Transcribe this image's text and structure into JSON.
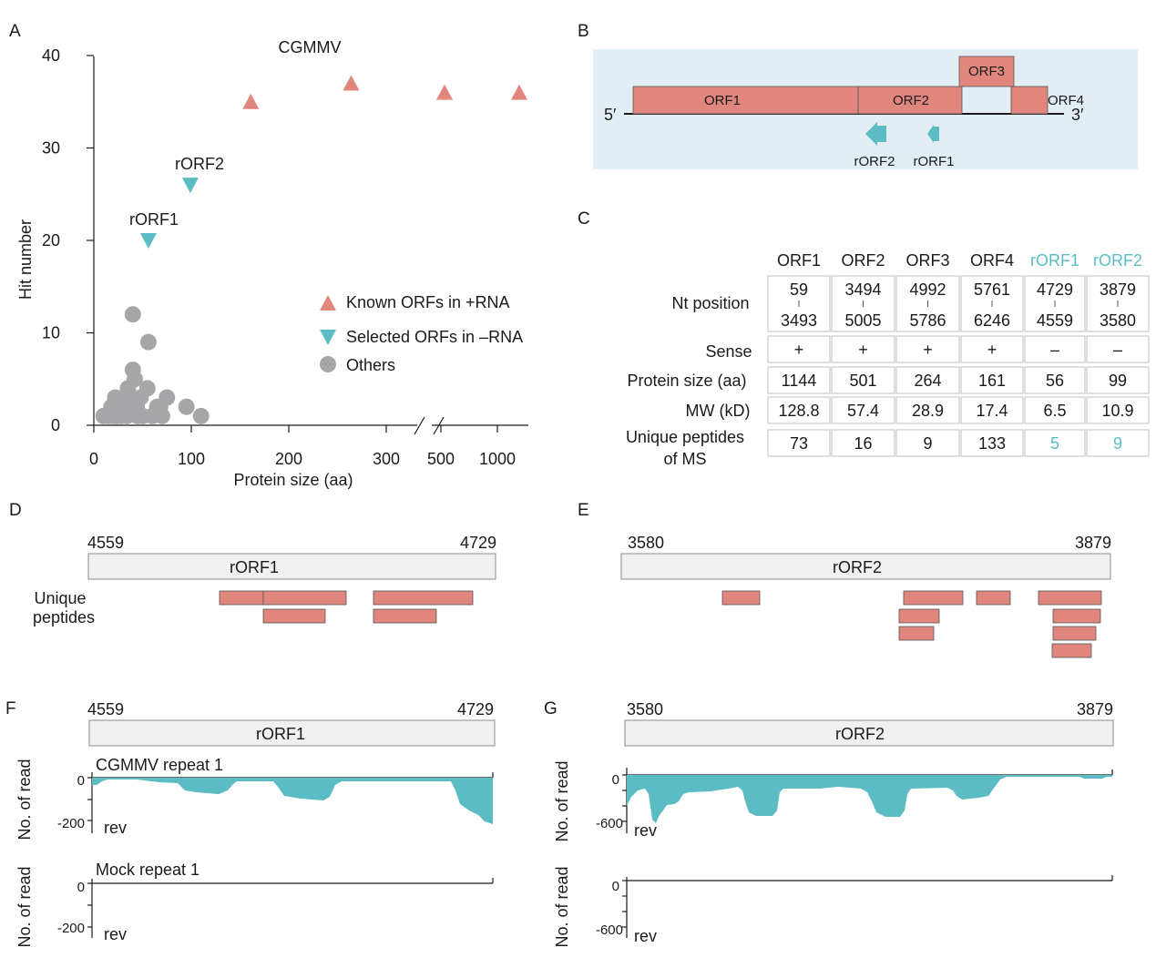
{
  "panels": {
    "A": "A",
    "B": "B",
    "C": "C",
    "D": "D",
    "E": "E",
    "F": "F",
    "G": "G"
  },
  "panelA": {
    "title": "CGMMV",
    "ylabel": "Hit number",
    "xlabel": "Protein size (aa)",
    "yticks": [
      "0",
      "10",
      "20",
      "30",
      "40"
    ],
    "xticks": [
      "0",
      "100",
      "200",
      "300",
      "500",
      "1000"
    ],
    "annotations": {
      "rorf1": "rORF1",
      "rorf2": "rORF2"
    },
    "legend": {
      "known": "Known ORFs in +RNA",
      "selected": "Selected ORFs in –RNA",
      "others": "Others"
    }
  },
  "chart_data": {
    "type": "scatter",
    "title": "CGMMV",
    "xlabel": "Protein size (aa)",
    "ylabel": "Hit number",
    "ylim": [
      0,
      40
    ],
    "xaxis_note": "broken axis between 300 and 500",
    "series": [
      {
        "name": "Known ORFs in +RNA",
        "marker": "triangle-up",
        "color": "#e0867d",
        "points": [
          [
            161,
            35
          ],
          [
            264,
            37
          ],
          [
            501,
            36
          ],
          [
            1144,
            36
          ]
        ]
      },
      {
        "name": "Selected ORFs in –RNA",
        "marker": "triangle-down",
        "color": "#5bbcc3",
        "points": [
          [
            56,
            20
          ],
          [
            99,
            26
          ]
        ]
      },
      {
        "name": "Others",
        "marker": "circle",
        "color": "#a6a6a8",
        "points": [
          [
            10,
            1
          ],
          [
            15,
            1
          ],
          [
            18,
            2
          ],
          [
            20,
            1
          ],
          [
            22,
            3
          ],
          [
            24,
            1
          ],
          [
            26,
            2
          ],
          [
            28,
            1
          ],
          [
            30,
            3
          ],
          [
            32,
            2
          ],
          [
            34,
            1
          ],
          [
            35,
            4
          ],
          [
            36,
            2
          ],
          [
            38,
            3
          ],
          [
            40,
            6
          ],
          [
            40,
            12
          ],
          [
            42,
            5
          ],
          [
            44,
            2
          ],
          [
            45,
            1
          ],
          [
            48,
            3
          ],
          [
            50,
            1
          ],
          [
            55,
            4
          ],
          [
            56,
            9
          ],
          [
            60,
            1
          ],
          [
            65,
            2
          ],
          [
            68,
            2
          ],
          [
            70,
            1
          ],
          [
            75,
            3
          ],
          [
            95,
            2
          ],
          [
            110,
            1
          ]
        ]
      }
    ]
  },
  "panelB": {
    "orfs": [
      "ORF1",
      "ORF2",
      "ORF3",
      "ORF4"
    ],
    "rorfs": [
      "rORF2",
      "rORF1"
    ],
    "five": "5′",
    "three": "3′"
  },
  "panelC": {
    "headers": [
      "ORF1",
      "ORF2",
      "ORF3",
      "ORF4",
      "rORF1",
      "rORF2"
    ],
    "rows": {
      "nt": {
        "label": "Nt position",
        "top": [
          "59",
          "3494",
          "4992",
          "5761",
          "4729",
          "3879"
        ],
        "bottom": [
          "3493",
          "5005",
          "5786",
          "6246",
          "4559",
          "3580"
        ]
      },
      "sense": {
        "label": "Sense",
        "values": [
          "+",
          "+",
          "+",
          "+",
          "–",
          "–"
        ]
      },
      "size": {
        "label": "Protein size (aa)",
        "values": [
          "1144",
          "501",
          "264",
          "161",
          "56",
          "99"
        ]
      },
      "mw": {
        "label": "MW (kD)",
        "values": [
          "128.8",
          "57.4",
          "28.9",
          "17.4",
          "6.5",
          "10.9"
        ]
      },
      "peptides": {
        "label1": "Unique peptides",
        "label2": "of MS",
        "values": [
          "73",
          "16",
          "9",
          "133",
          "5",
          "9"
        ]
      }
    }
  },
  "panelD": {
    "start": "4559",
    "end": "4729",
    "name": "rORF1",
    "label1": "Unique",
    "label2": "peptides"
  },
  "panelE": {
    "start": "3580",
    "end": "3879",
    "name": "rORF2"
  },
  "panelF": {
    "start": "4559",
    "end": "4729",
    "name": "rORF1",
    "track1": "CGMMV repeat 1",
    "track2": "Mock repeat 1",
    "ylabel": "No. of read",
    "y0": "0",
    "ymin": "-200",
    "rev": "rev"
  },
  "panelG": {
    "start": "3580",
    "end": "3879",
    "name": "rORF2",
    "ylabel": "No. of read",
    "y0": "0",
    "ymin": "-600",
    "rev": "rev"
  }
}
